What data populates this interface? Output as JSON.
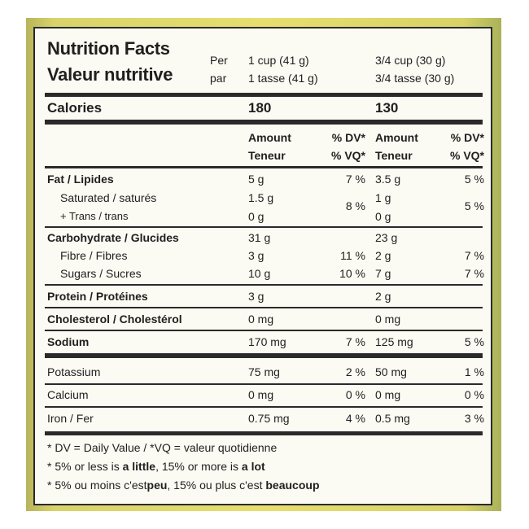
{
  "title_en": "Nutrition Facts",
  "title_fr": "Valeur nutritive",
  "per_en": "Per",
  "per_fr": "par",
  "serving1_en": "1 cup (41 g)",
  "serving1_fr": "1 tasse (41 g)",
  "serving2_en": "3/4 cup (30 g)",
  "serving2_fr": "3/4 tasse (30 g)",
  "calories_label": "Calories",
  "calories_1": "180",
  "calories_2": "130",
  "amount_en": "Amount",
  "amount_fr": "Teneur",
  "dv_en": "% DV*",
  "dv_fr": "% VQ*",
  "rows": {
    "fat": {
      "label": "Fat / Lipides",
      "a1": "5 g",
      "d1": "7 %",
      "a2": "3.5 g",
      "d2": "5 %"
    },
    "saturated": {
      "label": "Saturated / saturés",
      "a1": "1.5 g",
      "a2": "1 g"
    },
    "trans": {
      "label": "+ Trans / trans",
      "a1": "0 g",
      "a2": "0 g"
    },
    "sat_trans_dv1": "8 %",
    "sat_trans_dv2": "5 %",
    "carb": {
      "label": "Carbohydrate / Glucides",
      "a1": "31 g",
      "a2": "23 g"
    },
    "fibre": {
      "label": "Fibre / Fibres",
      "a1": "3 g",
      "d1": "11 %",
      "a2": "2 g",
      "d2": "7 %"
    },
    "sugars": {
      "label": "Sugars / Sucres",
      "a1": "10 g",
      "d1": "10 %",
      "a2": "7 g",
      "d2": "7 %"
    },
    "protein": {
      "label": "Protein / Protéines",
      "a1": "3 g",
      "a2": "2 g"
    },
    "cholesterol": {
      "label": "Cholesterol / Cholestérol",
      "a1": "0 mg",
      "a2": "0 mg"
    },
    "sodium": {
      "label": "Sodium",
      "a1": "170 mg",
      "d1": "7 %",
      "a2": "125 mg",
      "d2": "5 %"
    },
    "potassium": {
      "label": "Potassium",
      "a1": "75 mg",
      "d1": "2 %",
      "a2": "50 mg",
      "d2": "1 %"
    },
    "calcium": {
      "label": "Calcium",
      "a1": "0 mg",
      "d1": "0 %",
      "a2": "0 mg",
      "d2": "0 %"
    },
    "iron": {
      "label": "Iron / Fer",
      "a1": "0.75 mg",
      "d1": "4 %",
      "a2": "0.5 mg",
      "d2": "3 %"
    }
  },
  "footnotes": {
    "dv": "* DV = Daily Value / *VQ = valeur quotidienne",
    "en_prefix": "* 5% or less is ",
    "en_little": "a little",
    "en_mid": ", 15% or more is ",
    "en_lot": "a lot",
    "fr_prefix": "* 5% ou moins c'est",
    "fr_peu": "peu",
    "fr_mid": ", 15% ou plus c'est ",
    "fr_beaucoup": "beaucoup"
  }
}
